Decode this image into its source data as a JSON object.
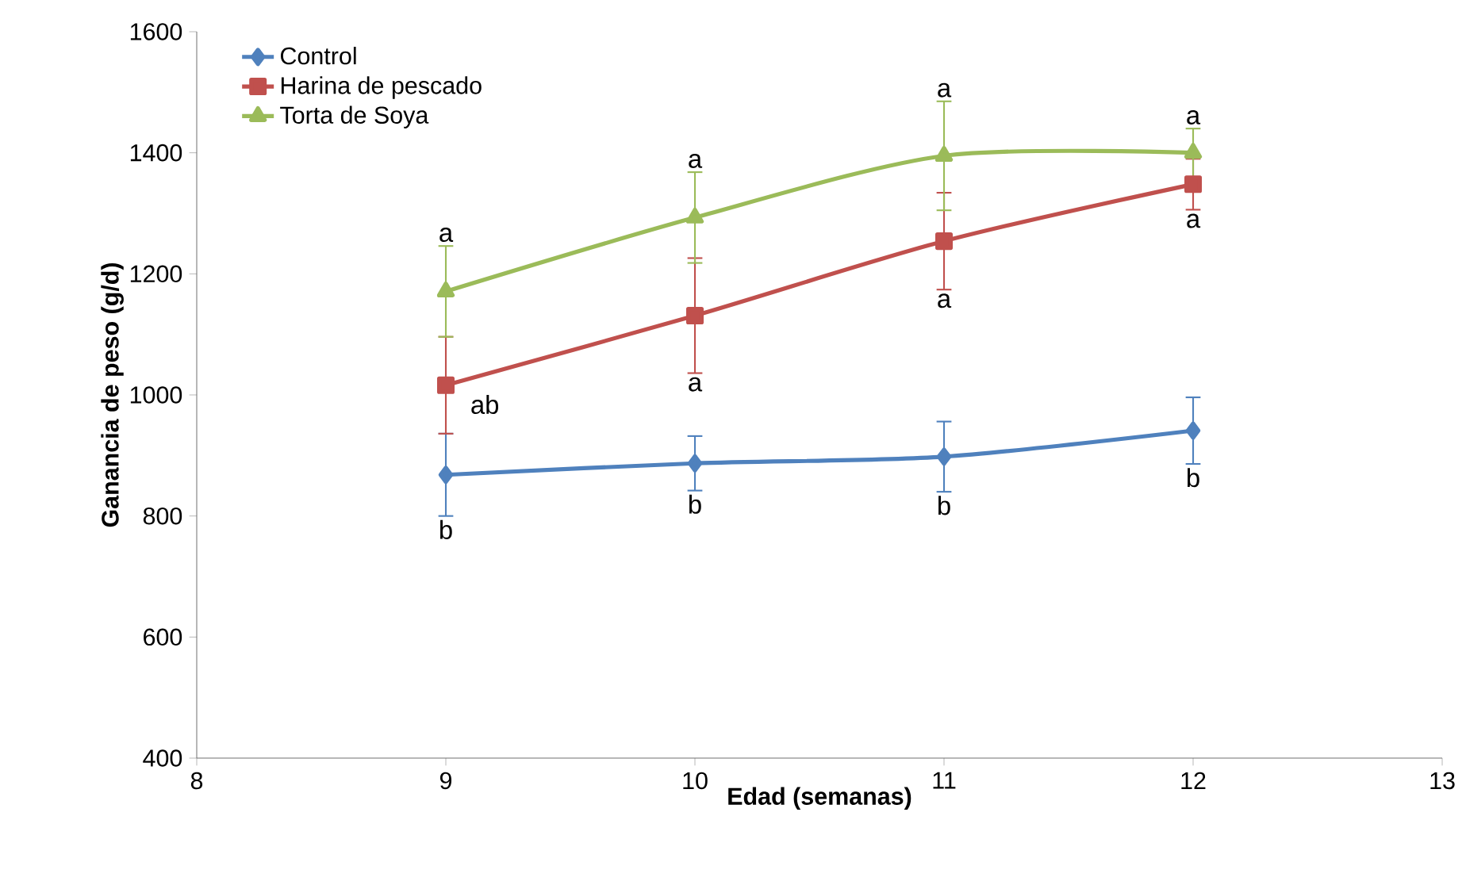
{
  "chart_data": {
    "type": "line",
    "xlabel": "Edad (semanas)",
    "ylabel": "Ganancia de peso (g/d)",
    "x": [
      9,
      10,
      11,
      12
    ],
    "xlim": [
      8,
      13
    ],
    "xticks": [
      8,
      9,
      10,
      11,
      12,
      13
    ],
    "ylim": [
      400,
      1600
    ],
    "yticks": [
      400,
      600,
      800,
      1000,
      1200,
      1400,
      1600
    ],
    "grid": false,
    "legend": "top left",
    "line_style": "solid",
    "series": [
      {
        "name": "Control",
        "color": "#4f81bd",
        "marker": "diamond",
        "values": [
          868,
          887,
          898,
          941
        ],
        "errors": [
          68,
          45,
          58,
          55
        ],
        "value_labels": [
          "b",
          "b",
          "b",
          "b"
        ]
      },
      {
        "name": "Harina de pescado",
        "color": "#c0504d",
        "marker": "square",
        "values": [
          1016,
          1131,
          1254,
          1348
        ],
        "errors": [
          80,
          95,
          80,
          42
        ],
        "value_labels": [
          "ab",
          "a",
          "a",
          "a"
        ]
      },
      {
        "name": "Torta de Soya",
        "color": "#9bbb59",
        "marker": "triangle",
        "values": [
          1171,
          1293,
          1395,
          1400
        ],
        "errors": [
          75,
          75,
          90,
          40
        ],
        "value_labels": [
          "a",
          "a",
          "a",
          "a"
        ]
      }
    ]
  }
}
